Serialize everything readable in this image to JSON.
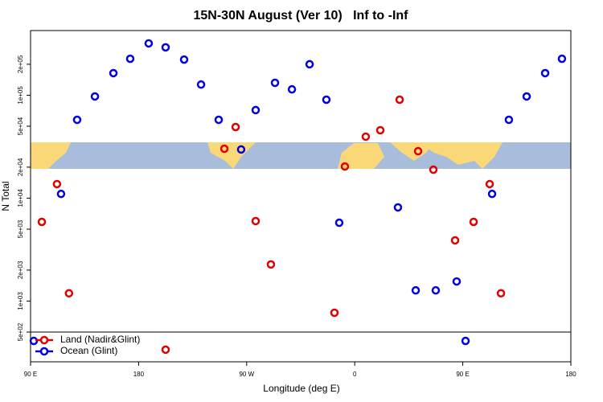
{
  "chart_data": {
    "type": "scatter",
    "title": "15N-30N August (Ver 10)   Inf to -Inf",
    "x_label": "Longitude (deg E)",
    "y_label": "N Total",
    "log_y": true,
    "xlim": [
      90,
      540
    ],
    "xticks": [
      {
        "value": 90,
        "label": "90 E"
      },
      180,
      {
        "value": 270,
        "label": "90 W"
      },
      {
        "value": 360,
        "label": "0"
      },
      {
        "value": 450,
        "label": "90 E"
      },
      {
        "value": 540,
        "label": "180"
      }
    ],
    "ylim": [
      257,
      425000
    ],
    "yticks": [
      {
        "value": 500,
        "label": "5e+02"
      },
      {
        "value": 1000,
        "label": "1e+03"
      },
      {
        "value": 2000,
        "label": "2e+03"
      },
      {
        "value": 5000,
        "label": "5e+03"
      },
      {
        "value": 10000,
        "label": "1e+04"
      },
      {
        "value": 20000,
        "label": "2e+04"
      },
      {
        "value": 50000,
        "label": "5e+04"
      },
      {
        "value": 100000,
        "label": "1e+05"
      },
      {
        "value": 200000,
        "label": "2e+05"
      }
    ],
    "series": [
      {
        "name": "Land (Nadir&Glint)",
        "color": "#e00000",
        "x": [
          99.4,
          112,
          122,
          202.5,
          251.4,
          260.8,
          277.5,
          290.2,
          343.1,
          351.8,
          369.2,
          381.3,
          397.4,
          412.8,
          425.5,
          443.6,
          459,
          472.4,
          481.8
        ],
        "values": [
          5880,
          13700,
          1190,
          337,
          30200,
          49100,
          5990,
          2270,
          770,
          20300,
          39600,
          45700,
          90500,
          28600,
          18900,
          3890,
          5880,
          13700,
          1190
        ]
      },
      {
        "name": "Ocean (Glint)",
        "color": "#0000e0",
        "x": [
          92.7,
          115.4,
          128.8,
          143.6,
          159,
          173,
          188.4,
          202.5,
          217.9,
          232,
          246.7,
          265.4,
          277.5,
          293.6,
          307.7,
          322.4,
          336.4,
          347.1,
          396,
          410.8,
          427.5,
          444.9,
          452.3,
          474.4,
          488.4,
          503.2,
          518.6,
          532.6
        ],
        "values": [
          410,
          11000,
          57700,
          97300,
          164000,
          226000,
          319000,
          292000,
          222000,
          127000,
          57700,
          29700,
          71700,
          132000,
          114000,
          200000,
          90500,
          5770,
          8130,
          1270,
          1270,
          1550,
          410,
          11000,
          57700,
          97300,
          164000,
          226000
        ]
      }
    ]
  }
}
